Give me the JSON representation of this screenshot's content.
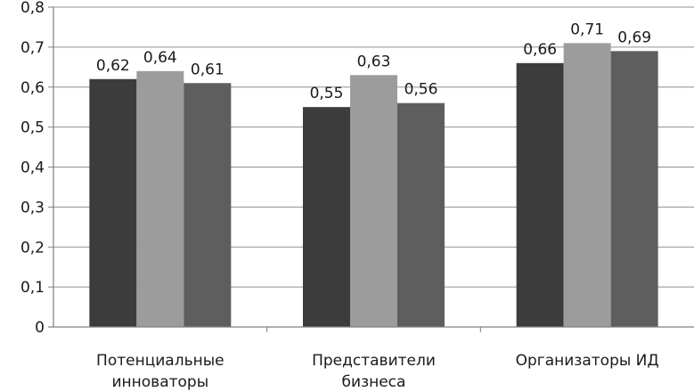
{
  "chart_data": {
    "type": "bar",
    "categories": [
      [
        "Потенциальные",
        "инноваторы"
      ],
      [
        "Представители",
        "бизнеса"
      ],
      [
        "Организаторы ИД"
      ]
    ],
    "series": [
      {
        "values": [
          0.62,
          0.55,
          0.66
        ],
        "color": "#3c3c3c"
      },
      {
        "values": [
          0.64,
          0.63,
          0.71
        ],
        "color": "#9c9c9c"
      },
      {
        "values": [
          0.61,
          0.56,
          0.69
        ],
        "color": "#5e5e5e"
      }
    ],
    "value_labels": [
      [
        "0,62",
        "0,55",
        "0,66"
      ],
      [
        "0,64",
        "0,63",
        "0,71"
      ],
      [
        "0,61",
        "0,56",
        "0,69"
      ]
    ],
    "ylim": [
      0,
      0.8
    ],
    "yticks": [
      {
        "value": 0,
        "label": "0"
      },
      {
        "value": 0.1,
        "label": "0,1"
      },
      {
        "value": 0.2,
        "label": "0,2"
      },
      {
        "value": 0.3,
        "label": "0,3"
      },
      {
        "value": 0.4,
        "label": "0,4"
      },
      {
        "value": 0.5,
        "label": "0,5"
      },
      {
        "value": 0.6,
        "label": "0,6"
      },
      {
        "value": 0.7,
        "label": "0,7"
      },
      {
        "value": 0.8,
        "label": "0,8"
      }
    ],
    "grid": true,
    "legend": "none",
    "colors": {
      "axis": "#808080",
      "grid": "#909090"
    }
  }
}
